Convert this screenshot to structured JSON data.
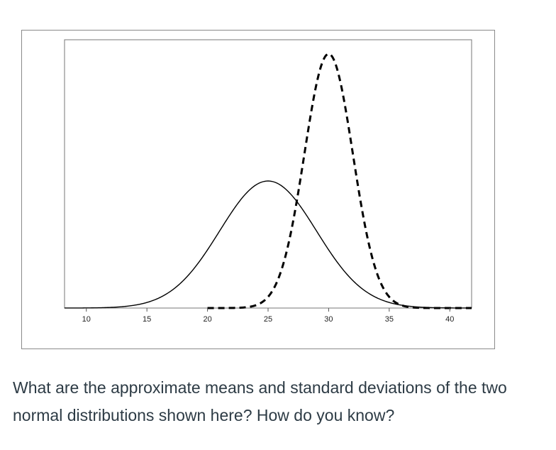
{
  "chart_data": {
    "type": "line",
    "title": "",
    "xlabel": "",
    "ylabel": "",
    "xlim": [
      8.2,
      41.8
    ],
    "x_ticks": [
      "10",
      "15",
      "20",
      "25",
      "30",
      "35",
      "40"
    ],
    "y_ticks": [],
    "grid": false,
    "legend": "none",
    "series": [
      {
        "style": "solid",
        "color": "#000000",
        "distribution": "normal",
        "mean": 25,
        "sd": 4,
        "x_range": [
          8.2,
          41.8
        ]
      },
      {
        "style": "dashed",
        "color": "#000000",
        "distribution": "normal",
        "mean": 30,
        "sd": 2,
        "x_range": [
          20,
          41.8
        ]
      }
    ]
  },
  "question": "What are the approximate means and standard deviations of the two normal distributions shown here? How do you know?"
}
